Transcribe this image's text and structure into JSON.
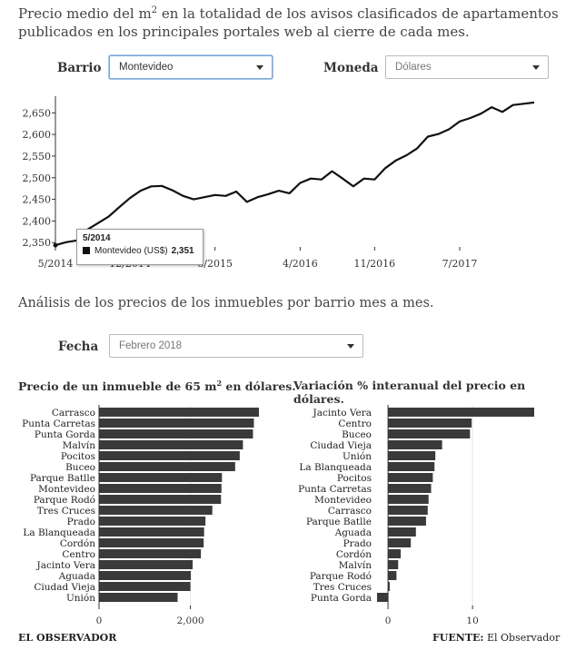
{
  "intro": {
    "before": "Precio medio del m",
    "sup": "2",
    "after": " en la totalidad de los avisos clasificados de apartamentos publicados en los principales portales web al cierre de cada mes."
  },
  "controls": {
    "barrio_label": "Barrio",
    "barrio_value": "Montevideo",
    "moneda_label": "Moneda",
    "moneda_value": "Dólares",
    "fecha_label": "Fecha",
    "fecha_value": "Febrero 2018"
  },
  "section_title": "Análisis de los precios de los inmuebles por barrio mes a mes.",
  "tooltip": {
    "date": "5/2014",
    "series": "Montevideo (US$)",
    "value": "2,351"
  },
  "bar_titles": {
    "left_before": "Precio de un inmueble de 65 m",
    "left_sup": "2",
    "left_after": " en dólares.",
    "right": "Variación % interanual del precio en dólares."
  },
  "footer": {
    "left": "EL OBSERVADOR",
    "right_label": "FUENTE:",
    "right_value": "El Observador"
  },
  "colors": {
    "line": "#111111",
    "bar": "#3a3a3a",
    "axis": "#333333"
  },
  "chart_data": [
    {
      "type": "line",
      "series_name": "Montevideo (US$)",
      "x": [
        "5/2014",
        "6/2014",
        "7/2014",
        "8/2014",
        "9/2014",
        "10/2014",
        "11/2014",
        "12/2014",
        "1/2015",
        "2/2015",
        "3/2015",
        "4/2015",
        "5/2015",
        "6/2015",
        "7/2015",
        "8/2015",
        "9/2015",
        "10/2015",
        "11/2015",
        "12/2015",
        "1/2016",
        "2/2016",
        "3/2016",
        "4/2016",
        "5/2016",
        "6/2016",
        "7/2016",
        "8/2016",
        "9/2016",
        "10/2016",
        "11/2016",
        "12/2016",
        "1/2017",
        "2/2017",
        "3/2017",
        "4/2017",
        "5/2017",
        "6/2017",
        "7/2017",
        "8/2017",
        "9/2017",
        "10/2017",
        "11/2017",
        "12/2017",
        "1/2018",
        "2/2018"
      ],
      "y": [
        2344,
        2351,
        2355,
        2380,
        2395,
        2410,
        2432,
        2453,
        2470,
        2480,
        2481,
        2471,
        2458,
        2450,
        2455,
        2460,
        2458,
        2468,
        2444,
        2455,
        2462,
        2470,
        2464,
        2488,
        2498,
        2496,
        2515,
        2498,
        2480,
        2498,
        2496,
        2522,
        2540,
        2552,
        2568,
        2595,
        2601,
        2612,
        2630,
        2638,
        2648,
        2663,
        2652,
        2668,
        2671,
        2674
      ],
      "x_ticks": [
        "5/2014",
        "12/2014",
        "8/2015",
        "4/2016",
        "11/2016",
        "7/2017"
      ],
      "y_ticks": [
        "2,350",
        "2,400",
        "2,450",
        "2,500",
        "2,550",
        "2,600",
        "2,650"
      ],
      "ylim": [
        2340,
        2680
      ]
    },
    {
      "type": "bar",
      "orientation": "horizontal",
      "categories": [
        "Carrasco",
        "Punta Carretas",
        "Punta Gorda",
        "Malvín",
        "Pocitos",
        "Buceo",
        "Parque Batlle",
        "Montevideo",
        "Parque Rodó",
        "Tres Cruces",
        "Prado",
        "La Blanqueada",
        "Cordón",
        "Centro",
        "Jacinto Vera",
        "Aguada",
        "Ciudad Vieja",
        "Unión"
      ],
      "values": [
        3500,
        3390,
        3370,
        3150,
        3080,
        2980,
        2690,
        2680,
        2670,
        2480,
        2330,
        2300,
        2290,
        2230,
        2050,
        2010,
        2000,
        1720
      ],
      "x_ticks": [
        "0",
        "2,000"
      ],
      "xlim": [
        0,
        3500
      ]
    },
    {
      "type": "bar",
      "orientation": "horizontal",
      "categories": [
        "Jacinto Vera",
        "Centro",
        "Buceo",
        "Ciudad Vieja",
        "Unión",
        "La Blanqueada",
        "Pocitos",
        "Punta Carretas",
        "Montevideo",
        "Carrasco",
        "Parque Batlle",
        "Aguada",
        "Prado",
        "Cordón",
        "Malvín",
        "Parque Rodó",
        "Tres Cruces",
        "Punta Gorda"
      ],
      "values": [
        17.3,
        9.9,
        9.7,
        6.4,
        5.6,
        5.5,
        5.3,
        5.1,
        4.8,
        4.7,
        4.5,
        3.3,
        2.7,
        1.5,
        1.2,
        1.0,
        0.2,
        -1.3
      ],
      "x_ticks": [
        "0",
        "10"
      ],
      "xlim": [
        -1.3,
        17.3
      ]
    }
  ]
}
